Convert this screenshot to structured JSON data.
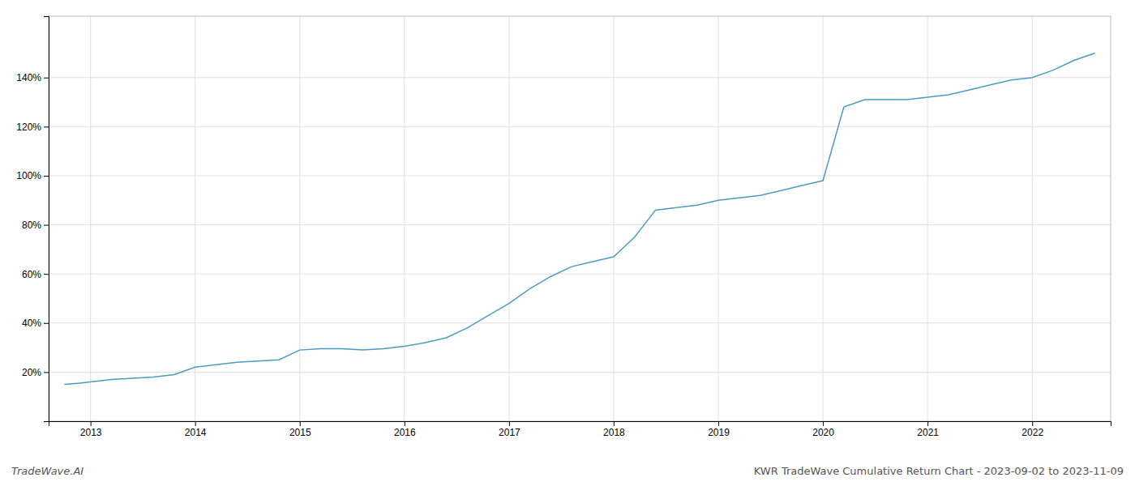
{
  "chart_data": {
    "type": "line",
    "title": "KWR TradeWave Cumulative Return Chart - 2023-09-02 to 2023-11-09",
    "annotations": [
      "TradeWave.AI"
    ],
    "x": [
      2012.75,
      2012.9,
      2013.0,
      2013.2,
      2013.4,
      2013.6,
      2013.8,
      2014.0,
      2014.2,
      2014.4,
      2014.6,
      2014.8,
      2015.0,
      2015.2,
      2015.4,
      2015.6,
      2015.8,
      2016.0,
      2016.2,
      2016.4,
      2016.6,
      2016.8,
      2017.0,
      2017.2,
      2017.4,
      2017.6,
      2017.8,
      2018.0,
      2018.2,
      2018.4,
      2018.6,
      2018.8,
      2019.0,
      2019.2,
      2019.4,
      2019.6,
      2019.8,
      2020.0,
      2020.2,
      2020.4,
      2020.6,
      2020.8,
      2021.0,
      2021.2,
      2021.4,
      2021.6,
      2021.8,
      2022.0,
      2022.2,
      2022.4,
      2022.6
    ],
    "values": [
      15,
      15.5,
      16,
      17,
      17.5,
      18,
      19,
      22,
      23,
      24,
      24.5,
      25,
      29,
      29.5,
      29.5,
      29,
      29.5,
      30.5,
      32,
      34,
      38,
      43,
      48,
      54,
      59,
      63,
      65,
      67,
      75,
      86,
      87,
      88,
      90,
      91,
      92,
      94,
      96,
      98,
      128,
      131,
      131,
      131,
      132,
      133,
      135,
      137,
      139,
      140,
      143,
      147,
      150
    ],
    "color": "#4a9cc7",
    "xlim": [
      2012.6,
      2022.75
    ],
    "ylim": [
      0,
      165
    ],
    "xticks": [
      2013,
      2014,
      2015,
      2016,
      2017,
      2018,
      2019,
      2020,
      2021,
      2022
    ],
    "yticks": [
      {
        "value": 20,
        "label": "20%"
      },
      {
        "value": 40,
        "label": "40%"
      },
      {
        "value": 60,
        "label": "60%"
      },
      {
        "value": 80,
        "label": "80%"
      },
      {
        "value": 100,
        "label": "100%"
      },
      {
        "value": 120,
        "label": "120%"
      },
      {
        "value": 140,
        "label": "140%"
      }
    ],
    "grid": true
  }
}
